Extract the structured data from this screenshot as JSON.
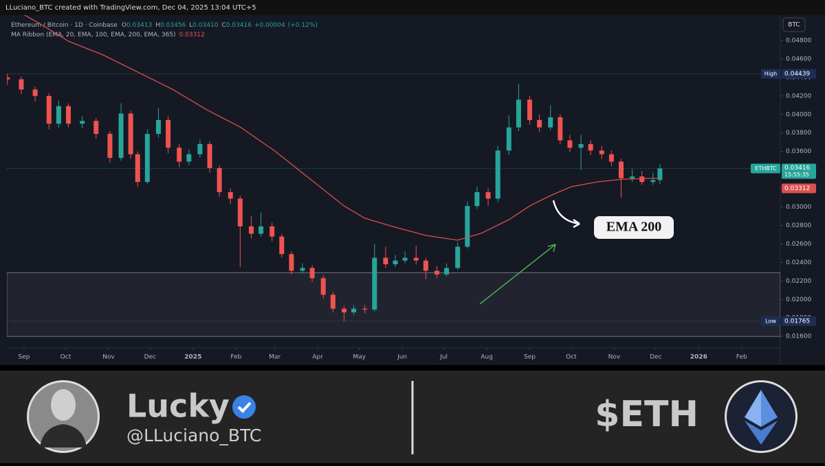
{
  "header": {
    "credit": "LLuciano_BTC created with TradingView.com, Dec 04, 2025 13:04 UTC+5"
  },
  "chart_data": {
    "type": "candlestick",
    "legend_title": "Ethereum / Bitcoin · 1D · Coinbase",
    "legend_fields": [
      "O",
      "H",
      "L",
      "C"
    ],
    "last_bar": {
      "open": 0.03413,
      "high": 0.03456,
      "low": {
        "value": 0.0341,
        "label": "0.03410"
      },
      "close": 0.03416,
      "change": {
        "value": 4e-05,
        "label": "+0.00004"
      },
      "change_pct": {
        "value": 0.12,
        "label": "(+0.12%)"
      }
    },
    "currency_button": "BTC",
    "symbol": "ETHBTC",
    "countdown": "15:55:35",
    "annotation": "EMA 200",
    "up_color": "#26a69a",
    "down_color": "#ef5350",
    "x": [
      -12,
      -2,
      8,
      18,
      25,
      32,
      42,
      52,
      62,
      70,
      77,
      82,
      89,
      97,
      104,
      112,
      119,
      127,
      134,
      141,
      149,
      156,
      164,
      171,
      179,
      186,
      193,
      201,
      208,
      216,
      223,
      231,
      238,
      246,
      253,
      261,
      268,
      275,
      283,
      290,
      298,
      305,
      313,
      320,
      327,
      335,
      342,
      350,
      357,
      365,
      372,
      380,
      387,
      394,
      402,
      409,
      417,
      424,
      431,
      439,
      446,
      454,
      459
    ],
    "open": [
      0.044,
      0.0438,
      0.0427,
      0.042,
      0.039,
      0.0409,
      0.039,
      0.0393,
      0.0379,
      0.0353,
      0.0401,
      0.0357,
      0.0327,
      0.0379,
      0.0394,
      0.0364,
      0.0349,
      0.0357,
      0.0368,
      0.0342,
      0.0316,
      0.0309,
      0.0279,
      0.0271,
      0.0279,
      0.0268,
      0.0249,
      0.0231,
      0.0234,
      0.0223,
      0.0205,
      0.019,
      0.0186,
      0.019,
      0.0189,
      0.0245,
      0.0238,
      0.0242,
      0.0245,
      0.0242,
      0.0231,
      0.0227,
      0.0234,
      0.0257,
      0.0301,
      0.0316,
      0.0309,
      0.0361,
      0.0386,
      0.0416,
      0.0394,
      0.0386,
      0.0397,
      0.0372,
      0.0364,
      0.0368,
      0.0361,
      0.0357,
      0.0349,
      0.0331,
      0.0333,
      0.0327,
      0.0329
    ],
    "high": [
      0.04439,
      0.0441,
      0.043,
      0.0423,
      0.0415,
      0.0412,
      0.0398,
      0.0396,
      0.0382,
      0.0412,
      0.0404,
      0.036,
      0.0384,
      0.0407,
      0.0398,
      0.0368,
      0.0362,
      0.0373,
      0.0371,
      0.0345,
      0.032,
      0.0312,
      0.029,
      0.0294,
      0.0283,
      0.0271,
      0.0252,
      0.0239,
      0.0237,
      0.0226,
      0.0208,
      0.0193,
      0.0194,
      0.0194,
      0.026,
      0.0257,
      0.0248,
      0.0252,
      0.0258,
      0.0245,
      0.0236,
      0.0239,
      0.0262,
      0.0306,
      0.0322,
      0.032,
      0.0366,
      0.0399,
      0.0433,
      0.042,
      0.04,
      0.041,
      0.04,
      0.0378,
      0.0378,
      0.0372,
      0.0366,
      0.0361,
      0.0352,
      0.0341,
      0.0339,
      0.0337,
      0.0346
    ],
    "low": [
      0.0432,
      0.0422,
      0.0414,
      0.0384,
      0.0386,
      0.0386,
      0.0385,
      0.0374,
      0.0348,
      0.035,
      0.0352,
      0.0322,
      0.0325,
      0.0375,
      0.0358,
      0.0343,
      0.0345,
      0.0353,
      0.0337,
      0.0311,
      0.0303,
      0.0235,
      0.0266,
      0.0268,
      0.0263,
      0.0245,
      0.0227,
      0.0228,
      0.0219,
      0.0201,
      0.0186,
      0.01765,
      0.0183,
      0.0185,
      0.0187,
      0.0234,
      0.0235,
      0.0239,
      0.0238,
      0.0222,
      0.0223,
      0.0225,
      0.0232,
      0.0255,
      0.0298,
      0.0301,
      0.0305,
      0.0356,
      0.0382,
      0.0389,
      0.0381,
      0.0383,
      0.0368,
      0.0359,
      0.034,
      0.0356,
      0.0352,
      0.0344,
      0.031,
      0.0327,
      0.0324,
      0.0324,
      0.0325
    ],
    "close": [
      0.0438,
      0.0427,
      0.042,
      0.039,
      0.0409,
      0.039,
      0.0393,
      0.0379,
      0.0353,
      0.0401,
      0.0357,
      0.0327,
      0.0379,
      0.0394,
      0.0364,
      0.0349,
      0.0357,
      0.0368,
      0.0342,
      0.0316,
      0.0309,
      0.0279,
      0.0271,
      0.0279,
      0.0268,
      0.0249,
      0.0231,
      0.0234,
      0.0223,
      0.0205,
      0.019,
      0.0186,
      0.019,
      0.0189,
      0.0245,
      0.0238,
      0.0242,
      0.0245,
      0.0242,
      0.0231,
      0.0227,
      0.0234,
      0.0257,
      0.0301,
      0.0316,
      0.0309,
      0.0361,
      0.0386,
      0.0416,
      0.0394,
      0.0386,
      0.0397,
      0.0372,
      0.0364,
      0.0368,
      0.0361,
      0.0357,
      0.0349,
      0.0331,
      0.0333,
      0.0327,
      0.0329,
      0.03416
    ],
    "series": [
      {
        "name": "MA Ribbon (EMA, 20, EMA, 100, EMA, 200, EMA, 365)",
        "color": "#d9504f",
        "x": [
          -5,
          12,
          32,
          57,
          82,
          107,
          132,
          156,
          181,
          206,
          231,
          246,
          266,
          290,
          313,
          330,
          350,
          365,
          380,
          395,
          414,
          432,
          459
        ],
        "values": [
          0.0512,
          0.04978,
          0.04792,
          0.04644,
          0.04459,
          0.04273,
          0.0405,
          0.03865,
          0.03605,
          0.03308,
          0.03011,
          0.02878,
          0.02789,
          0.02692,
          0.0264,
          0.02715,
          0.02863,
          0.03011,
          0.03123,
          0.03219,
          0.03271,
          0.033,
          0.03312
        ]
      }
    ],
    "high_marker": {
      "label": "High",
      "value": 0.04439
    },
    "low_marker": {
      "label": "Low",
      "value": 0.01765
    },
    "zone": [
      0.016,
      0.0229
    ],
    "xlim": [
      -12.4,
      545.9
    ],
    "ylim": [
      0.0149,
      0.0503
    ],
    "xticks": [
      {
        "value": 0,
        "label": "Sep"
      },
      {
        "value": 30,
        "label": "Oct"
      },
      {
        "value": 61,
        "label": "Nov"
      },
      {
        "value": 91,
        "label": "Dec"
      },
      {
        "value": 122,
        "label": "2025"
      },
      {
        "value": 153,
        "label": "Feb"
      },
      {
        "value": 181,
        "label": "Mar"
      },
      {
        "value": 212,
        "label": "Apr"
      },
      {
        "value": 242,
        "label": "May"
      },
      {
        "value": 273,
        "label": "Jun"
      },
      {
        "value": 303,
        "label": "Jul"
      },
      {
        "value": 334,
        "label": "Aug"
      },
      {
        "value": 365,
        "label": "Sep"
      },
      {
        "value": 395,
        "label": "Oct"
      },
      {
        "value": 426,
        "label": "Nov"
      },
      {
        "value": 456,
        "label": "Dec"
      },
      {
        "value": 487,
        "label": "2026"
      },
      {
        "value": 518,
        "label": "Feb"
      }
    ],
    "yticks": [
      {
        "value": 0.016,
        "label": "0.01600"
      },
      {
        "value": 0.018,
        "label": "0.01800"
      },
      {
        "value": 0.02,
        "label": "0.02000"
      },
      {
        "value": 0.022,
        "label": "0.02200"
      },
      {
        "value": 0.024,
        "label": "0.02400"
      },
      {
        "value": 0.026,
        "label": "0.02600"
      },
      {
        "value": 0.028,
        "label": "0.02800"
      },
      {
        "value": 0.03,
        "label": "0.03000"
      },
      {
        "value": 0.032,
        "label": "0.03200"
      },
      {
        "value": 0.034,
        "label": "0.03400"
      },
      {
        "value": 0.036,
        "label": "0.03600"
      },
      {
        "value": 0.038,
        "label": "0.03800"
      },
      {
        "value": 0.04,
        "label": "0.04000"
      },
      {
        "value": 0.042,
        "label": "0.04200"
      },
      {
        "value": 0.044,
        "label": "0.04400"
      },
      {
        "value": 0.046,
        "label": "0.04600"
      },
      {
        "value": 0.048,
        "label": "0.04800"
      }
    ],
    "grid": false
  },
  "footer": {
    "name": "Lucky",
    "handle": "@LLuciano_BTC",
    "ticker": "$ETH"
  }
}
